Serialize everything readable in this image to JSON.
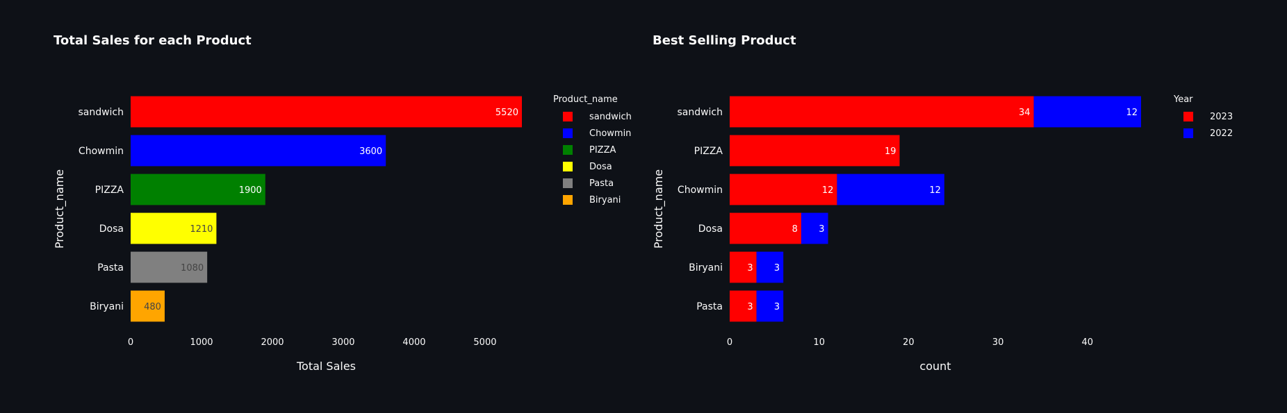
{
  "chart_data": [
    {
      "type": "bar",
      "orientation": "horizontal",
      "title": "Total Sales for each Product",
      "xlabel": "Total Sales",
      "ylabel": "Product_name",
      "categories": [
        "sandwich",
        "Chowmin",
        "PIZZA",
        "Dosa",
        "Pasta",
        "Biryani"
      ],
      "values": [
        5520,
        3600,
        1900,
        1210,
        1080,
        480
      ],
      "colors": [
        "#ff0000",
        "#0000ff",
        "#008000",
        "#ffff00",
        "#808080",
        "#ffa500"
      ],
      "label_colors": [
        "#ffffff",
        "#ffffff",
        "#ffffff",
        "#444444",
        "#444444",
        "#444444"
      ],
      "xlim": [
        0,
        5520
      ],
      "xticks": [
        0,
        1000,
        2000,
        3000,
        4000,
        5000
      ],
      "grid": false,
      "legend_title": "Product_name",
      "legend": [
        "sandwich",
        "Chowmin",
        "PIZZA",
        "Dosa",
        "Pasta",
        "Biryani"
      ],
      "legend_placement": "right"
    },
    {
      "type": "bar",
      "orientation": "horizontal",
      "stacked": true,
      "title": "Best Selling Product",
      "xlabel": "count",
      "ylabel": "Product_name",
      "categories": [
        "sandwich",
        "PIZZA",
        "Chowmin",
        "Dosa",
        "Biryani",
        "Pasta"
      ],
      "series": [
        {
          "name": "2023",
          "color": "#ff0000",
          "values": [
            34,
            19,
            12,
            8,
            3,
            3
          ]
        },
        {
          "name": "2022",
          "color": "#0000ff",
          "values": [
            12,
            0,
            12,
            3,
            3,
            3
          ]
        }
      ],
      "xlim": [
        0,
        46
      ],
      "xticks": [
        0,
        10,
        20,
        30,
        40
      ],
      "grid": false,
      "legend_title": "Year",
      "legend_placement": "right"
    }
  ]
}
